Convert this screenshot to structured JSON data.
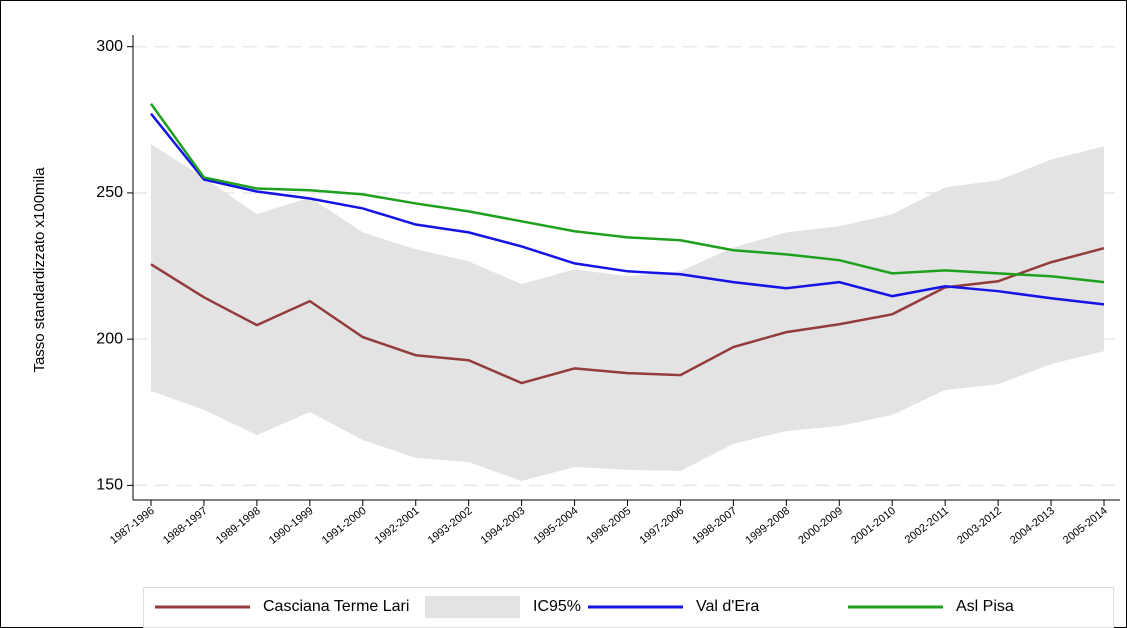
{
  "chart_data": {
    "type": "line",
    "y_label": "Tasso standardizzato x100mila",
    "categories": [
      "1987-1996",
      "1988-1997",
      "1989-1998",
      "1990-1999",
      "1991-2000",
      "1992-2001",
      "1993-2002",
      "1994-2003",
      "1995-2004",
      "1996-2005",
      "1997-2006",
      "1998-2007",
      "1999-2008",
      "2000-2009",
      "2001-2010",
      "2002-2011",
      "2003-2012",
      "2004-2013",
      "2005-2014"
    ],
    "series": [
      {
        "name": "Casciana Terme Lari",
        "color": "#943c3c",
        "values": [
          225.6,
          214.3,
          204.8,
          213,
          200.7,
          194.5,
          192.8,
          185,
          190,
          188.4,
          187.7,
          197.3,
          202.4,
          205.1,
          208.5,
          217.7,
          219.8,
          226.3,
          231.1
        ]
      },
      {
        "name": "IC95%",
        "color": "#e3e3e3",
        "lower": [
          182.3,
          175.8,
          167.2,
          175.1,
          165.5,
          159.4,
          158,
          151.5,
          156.3,
          155.3,
          154.9,
          164.2,
          168.6,
          170.3,
          174.1,
          182.6,
          184.6,
          191.5,
          195.9
        ],
        "upper": [
          266.6,
          255.3,
          242.7,
          248.5,
          236.5,
          230.7,
          226.6,
          218.8,
          223.9,
          221.5,
          223.2,
          231.4,
          236.5,
          238.6,
          242.7,
          251.9,
          254.3,
          261.4,
          265.9
        ]
      },
      {
        "name": "Val d'Era",
        "color": "#1414e6",
        "values": [
          277.1,
          254.6,
          250.5,
          248.1,
          244.7,
          239.2,
          236.5,
          231.7,
          225.9,
          223.2,
          222.2,
          219.5,
          217.4,
          219.5,
          214.7,
          218.1,
          216.4,
          214,
          211.9
        ]
      },
      {
        "name": "Asl Pisa",
        "color": "#1ea01e",
        "values": [
          280.5,
          255.3,
          251.5,
          250.9,
          249.5,
          246.4,
          243.7,
          240.3,
          236.9,
          234.8,
          233.8,
          230.4,
          229,
          227,
          222.5,
          223.5,
          222.5,
          221.5,
          219.5
        ]
      }
    ],
    "ylim": [
      145,
      304
    ],
    "yticks": [
      150,
      200,
      250,
      300
    ],
    "grid": true
  }
}
